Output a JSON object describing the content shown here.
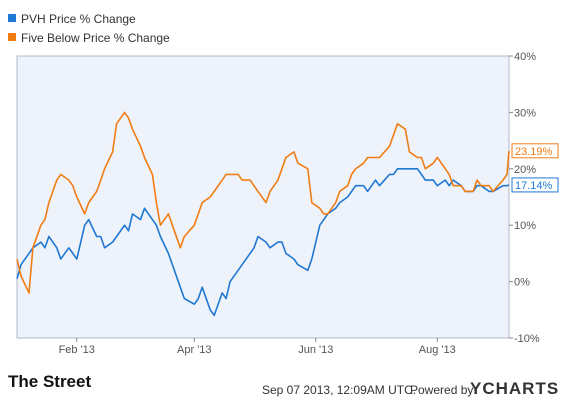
{
  "chart_data": {
    "type": "line",
    "x": [
      "2013-01-02",
      "2013-01-04",
      "2013-01-08",
      "2013-01-10",
      "2013-01-14",
      "2013-01-16",
      "2013-01-18",
      "2013-01-22",
      "2013-01-24",
      "2013-01-28",
      "2013-01-30",
      "2013-02-01",
      "2013-02-05",
      "2013-02-07",
      "2013-02-11",
      "2013-02-13",
      "2013-02-15",
      "2013-02-19",
      "2013-02-21",
      "2013-02-25",
      "2013-02-27",
      "2013-03-01",
      "2013-03-05",
      "2013-03-07",
      "2013-03-11",
      "2013-03-13",
      "2013-03-15",
      "2013-03-19",
      "2013-03-21",
      "2013-03-25",
      "2013-03-27",
      "2013-04-01",
      "2013-04-03",
      "2013-04-05",
      "2013-04-09",
      "2013-04-11",
      "2013-04-15",
      "2013-04-17",
      "2013-04-19",
      "2013-04-23",
      "2013-04-25",
      "2013-04-29",
      "2013-05-01",
      "2013-05-03",
      "2013-05-07",
      "2013-05-09",
      "2013-05-13",
      "2013-05-15",
      "2013-05-17",
      "2013-05-21",
      "2013-05-23",
      "2013-05-28",
      "2013-05-30",
      "2013-06-03",
      "2013-06-05",
      "2013-06-07",
      "2013-06-11",
      "2013-06-13",
      "2013-06-17",
      "2013-06-19",
      "2013-06-21",
      "2013-06-25",
      "2013-06-27",
      "2013-07-01",
      "2013-07-03",
      "2013-07-08",
      "2013-07-10",
      "2013-07-12",
      "2013-07-16",
      "2013-07-18",
      "2013-07-22",
      "2013-07-24",
      "2013-07-26",
      "2013-07-30",
      "2013-08-01",
      "2013-08-05",
      "2013-08-07",
      "2013-08-09",
      "2013-08-13",
      "2013-08-15",
      "2013-08-19",
      "2013-08-21",
      "2013-08-23",
      "2013-08-27",
      "2013-08-29",
      "2013-09-03",
      "2013-09-05",
      "2013-09-06"
    ],
    "series": [
      {
        "name": "PVH Price % Change",
        "color": "#1f78d1",
        "end_label": "17.14%",
        "values": [
          0.5,
          3,
          5,
          6,
          7,
          6,
          8,
          6,
          4,
          6,
          5,
          4,
          10,
          11,
          8,
          8,
          6,
          7,
          8,
          10,
          9,
          12,
          11,
          13,
          11,
          10,
          8,
          5,
          3,
          -1,
          -3,
          -4,
          -3,
          -1,
          -5,
          -6,
          -2,
          -3,
          0,
          2,
          3,
          5,
          6,
          8,
          7,
          6,
          7,
          7,
          5,
          4,
          3,
          2,
          4,
          10,
          11,
          12,
          13,
          14,
          15,
          16,
          17,
          17,
          16,
          18,
          17,
          19,
          19,
          20,
          20,
          20,
          20,
          19,
          18,
          18,
          17,
          18,
          17,
          18,
          17,
          16,
          16,
          17,
          17,
          16,
          16,
          17,
          17,
          17.14
        ]
      },
      {
        "name": "Five Below Price % Change",
        "color": "#f07d14",
        "end_label": "23.19%",
        "values": [
          4,
          1,
          -2,
          6,
          10,
          11,
          14,
          18,
          19,
          18,
          17,
          15,
          12,
          14,
          16,
          18,
          20,
          23,
          28,
          30,
          29,
          27,
          24,
          22,
          19,
          14,
          10,
          12,
          10,
          6,
          8,
          10,
          12,
          14,
          15,
          16,
          18,
          19,
          19,
          19,
          18,
          18,
          17,
          16,
          14,
          16,
          18,
          20,
          22,
          23,
          21,
          20,
          14,
          13,
          12,
          12,
          14,
          16,
          17,
          19,
          20,
          21,
          22,
          22,
          22,
          24,
          26,
          28,
          27,
          23,
          22,
          22,
          20,
          21,
          22,
          20,
          19,
          17,
          17,
          16,
          16,
          18,
          17,
          17,
          16,
          18,
          19,
          23.19
        ]
      }
    ],
    "ylim": [
      -10,
      40
    ],
    "y_ticks": [
      "-10%",
      "0%",
      "10%",
      "20%",
      "30%",
      "40%"
    ],
    "x_tick_labels": [
      "Feb '13",
      "Apr '13",
      "Jun '13",
      "Aug '13"
    ],
    "x_tick_dates": [
      "2013-02-01",
      "2013-04-01",
      "2013-06-01",
      "2013-08-01"
    ],
    "x_range": [
      "2013-01-02",
      "2013-09-06"
    ],
    "grid": false,
    "legend_position": "top-left",
    "plot_background": "#eef2fb"
  },
  "footer": {
    "timestamp": "Sep 07 2013, 12:09AM UTC.",
    "powered_by": "Powered by",
    "brand": "YCHARTS",
    "source_logo": "The Street"
  }
}
